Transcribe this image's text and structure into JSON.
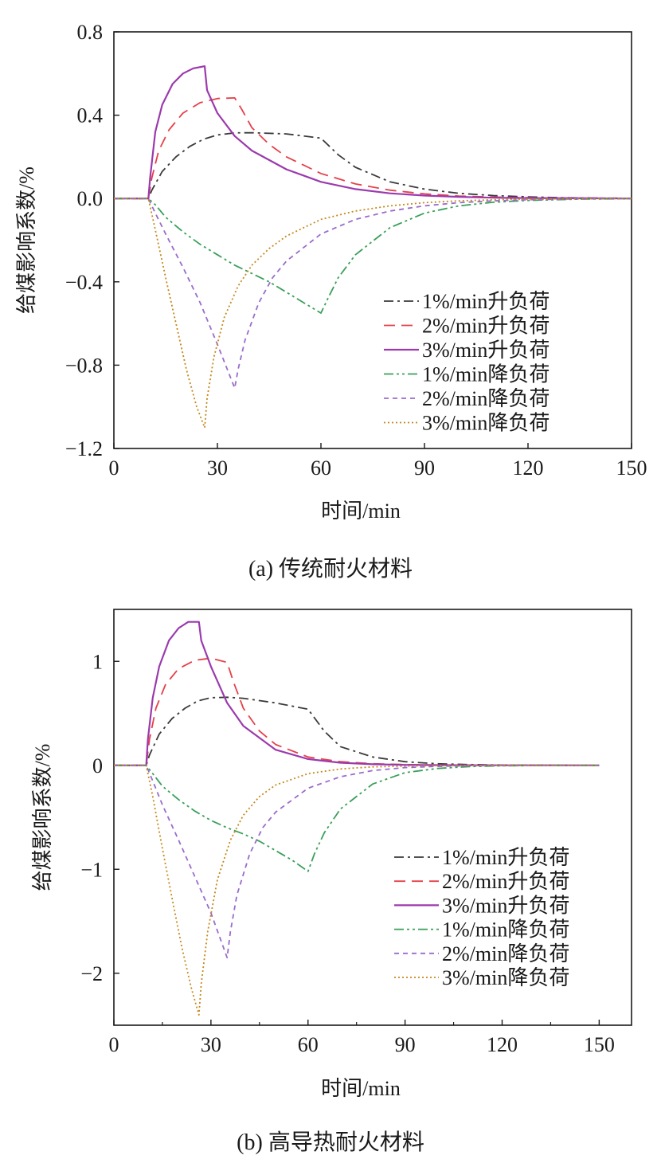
{
  "chart_data": [
    {
      "type": "line",
      "caption": "(a) 传统耐火材料",
      "xlabel": "时间/min",
      "ylabel": "给煤影响系数/%",
      "xlim": [
        0,
        150
      ],
      "ylim": [
        -1.2,
        0.8
      ],
      "xticks": [
        0,
        30,
        60,
        90,
        120,
        150
      ],
      "xtick_labels": [
        "0",
        "30",
        "60",
        "90",
        "120",
        "150"
      ],
      "yticks": [
        0.8,
        0.4,
        0.0,
        -0.4,
        -0.8,
        -1.2
      ],
      "ytick_labels": [
        "0.8",
        "0.4",
        "0.0",
        "−0.4",
        "−0.8",
        "−1.2"
      ],
      "grid": false,
      "legend_position": "lower-right",
      "series": [
        {
          "name": "1%/min升负荷",
          "color": "#3a3a3a",
          "dash": "dashdot",
          "x": [
            0,
            10,
            11,
            14,
            18,
            22,
            26,
            30,
            35,
            40,
            50,
            60,
            65,
            70,
            80,
            90,
            100,
            110,
            120,
            130,
            140,
            150
          ],
          "y": [
            0,
            0,
            0.04,
            0.13,
            0.2,
            0.25,
            0.285,
            0.305,
            0.315,
            0.316,
            0.31,
            0.29,
            0.21,
            0.15,
            0.08,
            0.045,
            0.025,
            0.014,
            0.008,
            0.004,
            0.002,
            0.001
          ]
        },
        {
          "name": "2%/min升负荷",
          "color": "#e5404a",
          "dash": "dashed",
          "x": [
            0,
            10,
            11,
            13,
            16,
            20,
            25,
            30,
            35,
            37,
            40,
            45,
            50,
            60,
            70,
            80,
            90,
            100,
            110,
            120,
            135,
            150
          ],
          "y": [
            0,
            0,
            0.1,
            0.23,
            0.33,
            0.41,
            0.46,
            0.48,
            0.483,
            0.43,
            0.34,
            0.26,
            0.2,
            0.12,
            0.07,
            0.04,
            0.022,
            0.012,
            0.007,
            0.004,
            0.002,
            0.001
          ]
        },
        {
          "name": "3%/min升负荷",
          "color": "#9b3aad",
          "dash": "solid",
          "x": [
            0,
            10,
            10.5,
            12,
            14,
            17,
            20,
            23,
            26.3,
            27,
            30,
            35,
            40,
            50,
            60,
            70,
            80,
            90,
            100,
            110,
            120,
            135,
            150
          ],
          "y": [
            0,
            0,
            0.1,
            0.32,
            0.45,
            0.55,
            0.6,
            0.625,
            0.635,
            0.52,
            0.41,
            0.3,
            0.23,
            0.14,
            0.08,
            0.045,
            0.025,
            0.014,
            0.008,
            0.004,
            0.002,
            0.001,
            0
          ]
        },
        {
          "name": "1%/min降负荷",
          "color": "#3aa05a",
          "dash": "dashdotdot",
          "x": [
            0,
            10,
            12,
            15,
            20,
            25,
            30,
            35,
            40,
            45,
            50,
            55,
            60,
            62,
            65,
            70,
            80,
            90,
            100,
            110,
            120,
            135,
            150
          ],
          "y": [
            0,
            0,
            -0.03,
            -0.09,
            -0.16,
            -0.22,
            -0.27,
            -0.32,
            -0.36,
            -0.4,
            -0.45,
            -0.5,
            -0.55,
            -0.48,
            -0.38,
            -0.27,
            -0.14,
            -0.07,
            -0.035,
            -0.018,
            -0.009,
            -0.003,
            -0.001
          ]
        },
        {
          "name": "2%/min降负荷",
          "color": "#9a6ccc",
          "dash": "shortdash",
          "x": [
            0,
            10,
            12,
            15,
            20,
            25,
            30,
            35,
            36,
            38,
            42,
            46,
            50,
            60,
            70,
            80,
            90,
            100,
            110,
            120,
            135,
            150
          ],
          "y": [
            0,
            0,
            -0.07,
            -0.17,
            -0.33,
            -0.5,
            -0.7,
            -0.91,
            -0.82,
            -0.68,
            -0.5,
            -0.38,
            -0.3,
            -0.17,
            -0.1,
            -0.06,
            -0.035,
            -0.02,
            -0.011,
            -0.006,
            -0.002,
            -0.001
          ]
        },
        {
          "name": "3%/min降负荷",
          "color": "#c48a1c",
          "dash": "dotted",
          "x": [
            0,
            10,
            12,
            15,
            18,
            21,
            24,
            26.3,
            27,
            29,
            32,
            36,
            40,
            45,
            50,
            60,
            70,
            80,
            90,
            100,
            110,
            120,
            135,
            150
          ],
          "y": [
            0,
            0,
            -0.15,
            -0.38,
            -0.6,
            -0.82,
            -1.0,
            -1.1,
            -0.96,
            -0.76,
            -0.57,
            -0.42,
            -0.32,
            -0.24,
            -0.18,
            -0.1,
            -0.06,
            -0.035,
            -0.02,
            -0.011,
            -0.006,
            -0.003,
            -0.001,
            0
          ]
        }
      ]
    },
    {
      "type": "line",
      "caption": "(b) 高导热耐火材料",
      "xlabel": "时间/min",
      "ylabel": "给煤影响系数/%",
      "xlim": [
        0,
        160
      ],
      "ylim": [
        -2.5,
        1.5
      ],
      "xticks": [
        0,
        30,
        60,
        90,
        120,
        150
      ],
      "xtick_labels": [
        "0",
        "30",
        "60",
        "90",
        "120",
        "150"
      ],
      "yticks": [
        1,
        0,
        -1,
        -2
      ],
      "ytick_labels": [
        "1",
        "0",
        "−1",
        "−2"
      ],
      "grid": false,
      "legend_position": "lower-right",
      "series": [
        {
          "name": "1%/min升负荷",
          "color": "#3a3a3a",
          "dash": "dashdot",
          "x": [
            0,
            10,
            11,
            14,
            18,
            22,
            26,
            30,
            35,
            40,
            50,
            60,
            65,
            70,
            80,
            90,
            100,
            110,
            120,
            130,
            140,
            150
          ],
          "y": [
            0,
            0,
            0.1,
            0.3,
            0.45,
            0.55,
            0.62,
            0.65,
            0.655,
            0.645,
            0.6,
            0.54,
            0.33,
            0.18,
            0.08,
            0.035,
            0.015,
            0.007,
            0.003,
            0.001,
            0.0005,
            0
          ]
        },
        {
          "name": "2%/min升负荷",
          "color": "#e5404a",
          "dash": "dashed",
          "x": [
            0,
            10,
            11,
            13,
            16,
            20,
            25,
            30,
            35,
            37,
            40,
            45,
            50,
            60,
            70,
            80,
            90,
            100,
            110,
            120,
            135,
            150
          ],
          "y": [
            0,
            0,
            0.25,
            0.55,
            0.78,
            0.93,
            1.01,
            1.03,
            0.99,
            0.8,
            0.55,
            0.33,
            0.2,
            0.08,
            0.035,
            0.015,
            0.007,
            0.003,
            0.0015,
            0.0007,
            0.0002,
            0
          ]
        },
        {
          "name": "3%/min升负荷",
          "color": "#9b3aad",
          "dash": "solid",
          "x": [
            0,
            10,
            10.5,
            12,
            14,
            17,
            20,
            23,
            26.3,
            27,
            30,
            35,
            40,
            50,
            60,
            70,
            80,
            90,
            100,
            110,
            120,
            135,
            150
          ],
          "y": [
            0,
            0,
            0.25,
            0.65,
            0.95,
            1.2,
            1.32,
            1.38,
            1.38,
            1.2,
            0.95,
            0.6,
            0.38,
            0.15,
            0.06,
            0.025,
            0.01,
            0.004,
            0.002,
            0.001,
            0.0005,
            0.0002,
            0
          ]
        },
        {
          "name": "1%/min降负荷",
          "color": "#3aa05a",
          "dash": "dashdotdot",
          "x": [
            0,
            10,
            12,
            15,
            20,
            25,
            30,
            35,
            40,
            45,
            50,
            55,
            60,
            62,
            65,
            70,
            80,
            90,
            100,
            110,
            120,
            135,
            150
          ],
          "y": [
            0,
            0,
            -0.08,
            -0.2,
            -0.33,
            -0.44,
            -0.53,
            -0.6,
            -0.66,
            -0.73,
            -0.82,
            -0.91,
            -1.02,
            -0.85,
            -0.65,
            -0.42,
            -0.18,
            -0.07,
            -0.03,
            -0.012,
            -0.005,
            -0.001,
            0
          ]
        },
        {
          "name": "2%/min降负荷",
          "color": "#9a6ccc",
          "dash": "shortdash",
          "x": [
            0,
            10,
            12,
            15,
            20,
            25,
            30,
            35,
            36,
            38,
            42,
            46,
            50,
            60,
            70,
            80,
            90,
            100,
            110,
            120,
            135,
            150
          ],
          "y": [
            0,
            0,
            -0.15,
            -0.38,
            -0.72,
            -1.07,
            -1.42,
            -1.85,
            -1.6,
            -1.25,
            -0.85,
            -0.6,
            -0.45,
            -0.22,
            -0.11,
            -0.05,
            -0.022,
            -0.01,
            -0.004,
            -0.002,
            -0.0005,
            0
          ]
        },
        {
          "name": "3%/min降负荷",
          "color": "#c48a1c",
          "dash": "dotted",
          "x": [
            0,
            10,
            12,
            15,
            18,
            21,
            24,
            26.3,
            27,
            29,
            32,
            36,
            40,
            45,
            50,
            60,
            70,
            80,
            90,
            100,
            110,
            120,
            135,
            150
          ],
          "y": [
            0,
            0,
            -0.3,
            -0.8,
            -1.28,
            -1.75,
            -2.15,
            -2.4,
            -2.1,
            -1.6,
            -1.1,
            -0.72,
            -0.48,
            -0.3,
            -0.19,
            -0.08,
            -0.035,
            -0.015,
            -0.007,
            -0.003,
            -0.0015,
            -0.0007,
            -0.0002,
            0
          ]
        }
      ]
    }
  ]
}
